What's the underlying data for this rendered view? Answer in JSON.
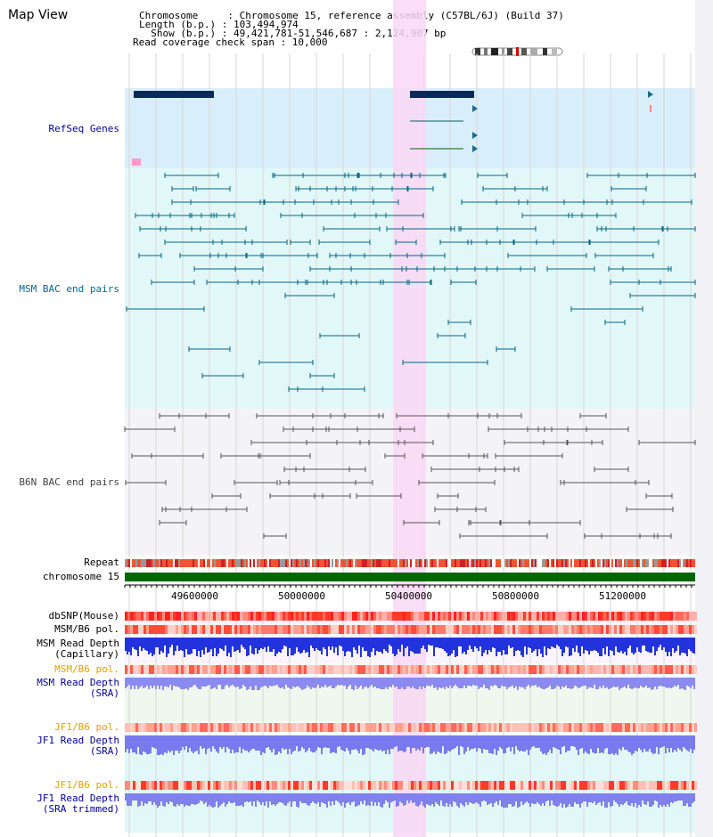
{
  "header": {
    "title": "Map View",
    "info_lines": [
      "Chromosome     : Chromosome 15, reference assembly (C57BL/6J) (Build 37)",
      "Length (b.p.) : 103,494,974",
      "  Show (b.p.) : 49,421,781-51,546,687 : 2,124,907 bp",
      "Read coverage check span : 10,000"
    ]
  },
  "tracks": {
    "refseq": {
      "label": "RefSeq Genes",
      "color": "#000099"
    },
    "msm_bac": {
      "label": "MSM BAC end pairs",
      "color": "#006699"
    },
    "b6n_bac": {
      "label": "B6N BAC end pairs",
      "color": "#444444"
    },
    "repeat": {
      "label": "Repeat"
    },
    "chromosome": {
      "label": "chromosome 15"
    },
    "dbsnp": {
      "label": "dbSNP(Mouse)"
    },
    "msm_b6_pol": {
      "label": "MSM/B6 pol."
    },
    "msm_read_depth_cap": {
      "label": "MSM Read Depth\n(Capillary)"
    },
    "msm_b6_pol_2": {
      "label": "MSM/B6 pol."
    },
    "msm_read_depth_sra": {
      "label": "MSM Read Depth\n(SRA)"
    },
    "jf1_b6_pol": {
      "label": "JF1/B6 pol."
    },
    "jf1_read_depth_sra": {
      "label": "JF1 Read Depth\n(SRA)"
    },
    "jf1_b6_pol_2": {
      "label": "JF1/B6 pol."
    },
    "jf1_read_depth_trim": {
      "label": "JF1 Read Depth\n(SRA trimmed)"
    }
  },
  "axis": {
    "ticks": [
      "49600000",
      "50000000",
      "50400000",
      "50800000",
      "51200000"
    ]
  },
  "colors": {
    "highlight": "#f9d7f5",
    "refseq_bg": "#d9eefb",
    "msm_bg": "#e2f8f8",
    "gene": "#0a2a5c",
    "chrom": "#006600",
    "orange_label": "#e8a000"
  }
}
